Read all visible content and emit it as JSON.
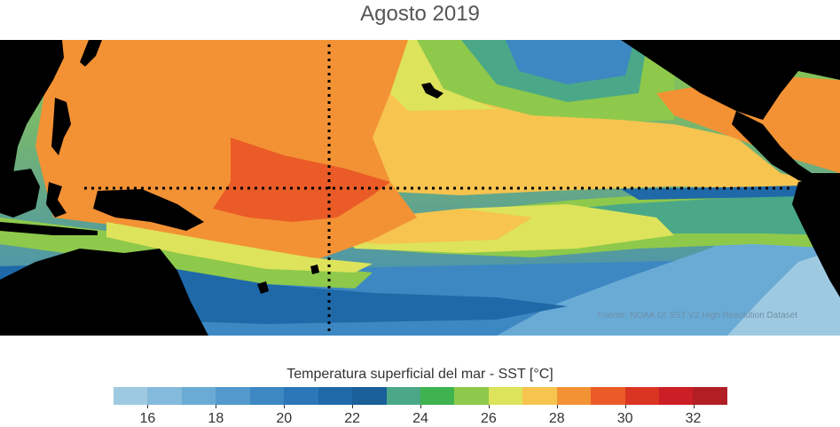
{
  "title": "Agosto 2019",
  "source": "Fuente: NOAA OI SST V2 High Resolution Dataset",
  "colorbar": {
    "label": "Temperatura superficial del mar - SST  [°C]",
    "min": 15,
    "max": 33,
    "step": 1,
    "tick_values": [
      16,
      18,
      20,
      22,
      24,
      26,
      28,
      30,
      32
    ],
    "tick_labels": [
      "16",
      "18",
      "20",
      "22",
      "24",
      "26",
      "28",
      "30",
      "32"
    ],
    "colors": [
      "#9ecae1",
      "#84bbdd",
      "#6aabd6",
      "#5399cc",
      "#3d88c2",
      "#2b77b7",
      "#1f69a8",
      "#195f98",
      "#4aa888",
      "#3fb34f",
      "#8ec94b",
      "#dde35a",
      "#f6c44f",
      "#f39234",
      "#ea5b27",
      "#da3423",
      "#cc1e25",
      "#b11e24"
    ]
  },
  "map": {
    "region": "Pacífico tropical",
    "colors": {
      "land": "#000000",
      "warm_pool": "#f39234",
      "hot_core": "#ea5b27",
      "warm": "#f6c44f",
      "mid": "#dde35a",
      "green": "#8ec94b",
      "green_dark": "#3fb34f",
      "teal": "#4aa888",
      "blue_dark": "#1f69a8",
      "blue": "#3d88c2",
      "blue_light": "#6aabd6",
      "blue_pale": "#9ecae1"
    }
  }
}
